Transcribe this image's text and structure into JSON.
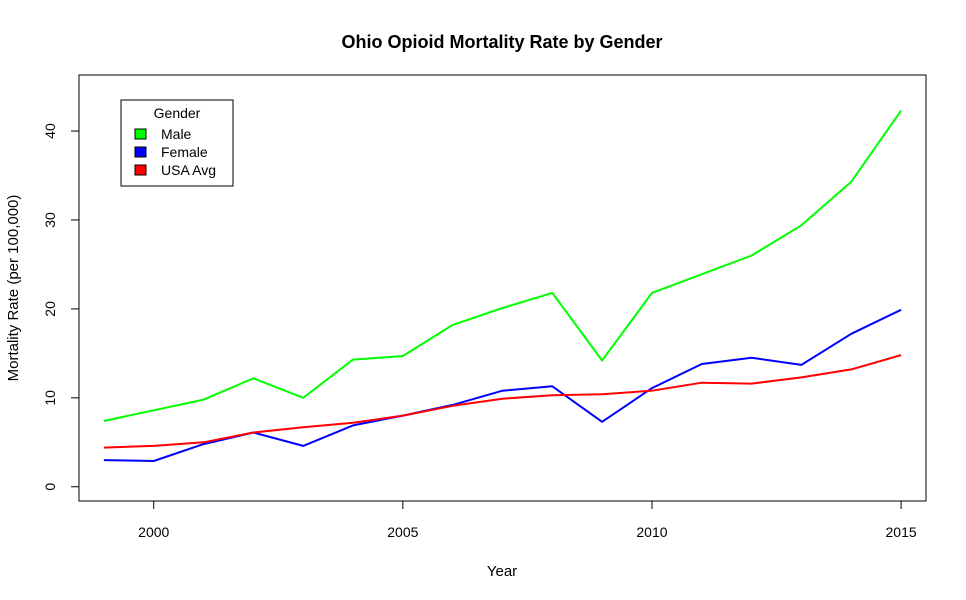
{
  "chart_data": {
    "type": "line",
    "title": "Ohio Opioid Mortality Rate by Gender",
    "xlabel": "Year",
    "ylabel": "Mortality Rate (per 100,000)",
    "x": [
      1999,
      2000,
      2001,
      2002,
      2003,
      2004,
      2005,
      2006,
      2007,
      2008,
      2009,
      2010,
      2011,
      2012,
      2013,
      2014,
      2015
    ],
    "xlim": [
      1998.5,
      2015.5
    ],
    "ylim": [
      -1.6,
      46.3
    ],
    "x_ticks": [
      2000,
      2005,
      2010,
      2015
    ],
    "y_ticks": [
      0,
      10,
      20,
      30,
      40
    ],
    "grid": false,
    "legend": {
      "title": "Gender",
      "position": "top-left"
    },
    "series": [
      {
        "name": "Male",
        "color": "#00ff00",
        "values": [
          7.4,
          8.6,
          9.8,
          12.2,
          10.0,
          14.3,
          14.7,
          18.2,
          20.1,
          21.8,
          14.2,
          21.8,
          23.9,
          26.0,
          29.4,
          34.3,
          42.3
        ]
      },
      {
        "name": "Female",
        "color": "#0000ff",
        "values": [
          3.0,
          2.9,
          4.8,
          6.1,
          4.6,
          6.9,
          8.0,
          9.2,
          10.8,
          11.3,
          7.3,
          11.1,
          13.8,
          14.5,
          13.7,
          17.2,
          19.9
        ]
      },
      {
        "name": "USA Avg",
        "color": "#ff0000",
        "values": [
          4.4,
          4.6,
          5.0,
          6.1,
          6.7,
          7.2,
          8.0,
          9.1,
          9.9,
          10.3,
          10.4,
          10.8,
          11.7,
          11.6,
          12.3,
          13.2,
          14.8
        ]
      }
    ]
  }
}
